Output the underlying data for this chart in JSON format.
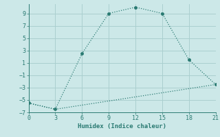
{
  "xlabel": "Humidex (Indice chaleur)",
  "background_color": "#cce8e8",
  "grid_color": "#aacfcf",
  "line_color": "#2a7a72",
  "line1_x": [
    0,
    3,
    6,
    9,
    12,
    15,
    18,
    21
  ],
  "line1_y": [
    -5.5,
    -6.5,
    2.5,
    9.0,
    10.0,
    9.0,
    1.5,
    -2.5
  ],
  "line2_x": [
    0,
    3,
    21
  ],
  "line2_y": [
    -5.5,
    -6.5,
    -2.5
  ],
  "xlim": [
    0,
    21
  ],
  "ylim": [
    -7,
    10.5
  ],
  "xticks": [
    0,
    3,
    6,
    9,
    12,
    15,
    18,
    21
  ],
  "yticks": [
    -7,
    -5,
    -3,
    -1,
    1,
    3,
    5,
    7,
    9
  ]
}
